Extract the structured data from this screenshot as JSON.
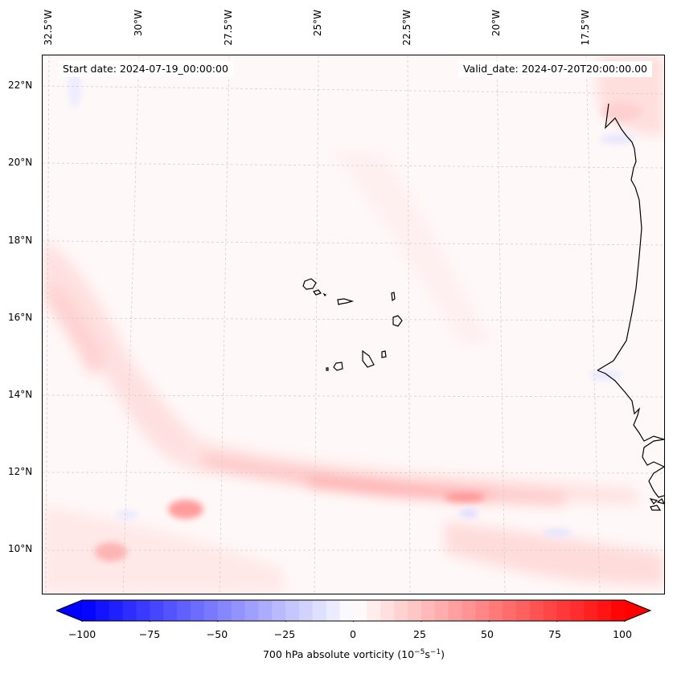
{
  "map": {
    "start_date_label": "Start date: 2024-07-19_00:00:00",
    "valid_date_label": "Valid_date: 2024-07-20T20:00:00.00",
    "longitude_labels": [
      "32.5°W",
      "30°W",
      "27.5°W",
      "25°W",
      "22.5°W",
      "20°W",
      "17.5°W"
    ],
    "latitude_labels": [
      "22°N",
      "20°N",
      "18°N",
      "16°N",
      "14°N",
      "12°N",
      "10°N"
    ],
    "background_color": "#fff8f8",
    "features": [
      "Cape Verde islands",
      "West African coastline (Mauritania, Senegal, Gambia, Guinea-Bissau)"
    ]
  },
  "colorbar": {
    "label_prefix": "700 hPa absolute vorticity (10",
    "label_exp1": "−5",
    "label_mid": "s",
    "label_exp2": "−1",
    "label_suffix": ")",
    "ticks": [
      "−100",
      "−75",
      "−50",
      "−25",
      "0",
      "25",
      "50",
      "75",
      "100"
    ],
    "min": -100,
    "max": 100,
    "step": 5,
    "extend": "both",
    "low_color": "#0000ff",
    "mid_color": "#ffffff",
    "high_color": "#ff0000"
  },
  "chart_data": {
    "type": "heatmap",
    "title": "",
    "variable": "700 hPa absolute vorticity",
    "units": "10^-5 s^-1",
    "x_ticks": [
      "32.5°W",
      "30°W",
      "27.5°W",
      "25°W",
      "22.5°W",
      "20°W",
      "17.5°W"
    ],
    "y_ticks": [
      "22°N",
      "20°N",
      "18°N",
      "16°N",
      "14°N",
      "12°N",
      "10°N"
    ],
    "xlim": [
      "~33°W",
      "~16°W"
    ],
    "ylim": [
      "~9°N",
      "~22.8°N"
    ],
    "colorbar_range": [
      -100,
      100
    ],
    "grid": true,
    "notable_features": [
      {
        "description": "Elongated positive vorticity band",
        "lat": "~11.5-12.5°N",
        "lon": "~28-20°W",
        "approx_max": 30
      },
      {
        "description": "Positive vorticity maximum",
        "lat": "~11°N",
        "lon": "~29.5°W",
        "approx_max": 35
      },
      {
        "description": "Positive vorticity region",
        "lat": "~10°N",
        "lon": "~31.5°W",
        "approx_max": 25
      },
      {
        "description": "Weak negative vorticity patches",
        "lat": "~10-11°N",
        "lon": "scattered",
        "approx_min": -10
      }
    ]
  }
}
